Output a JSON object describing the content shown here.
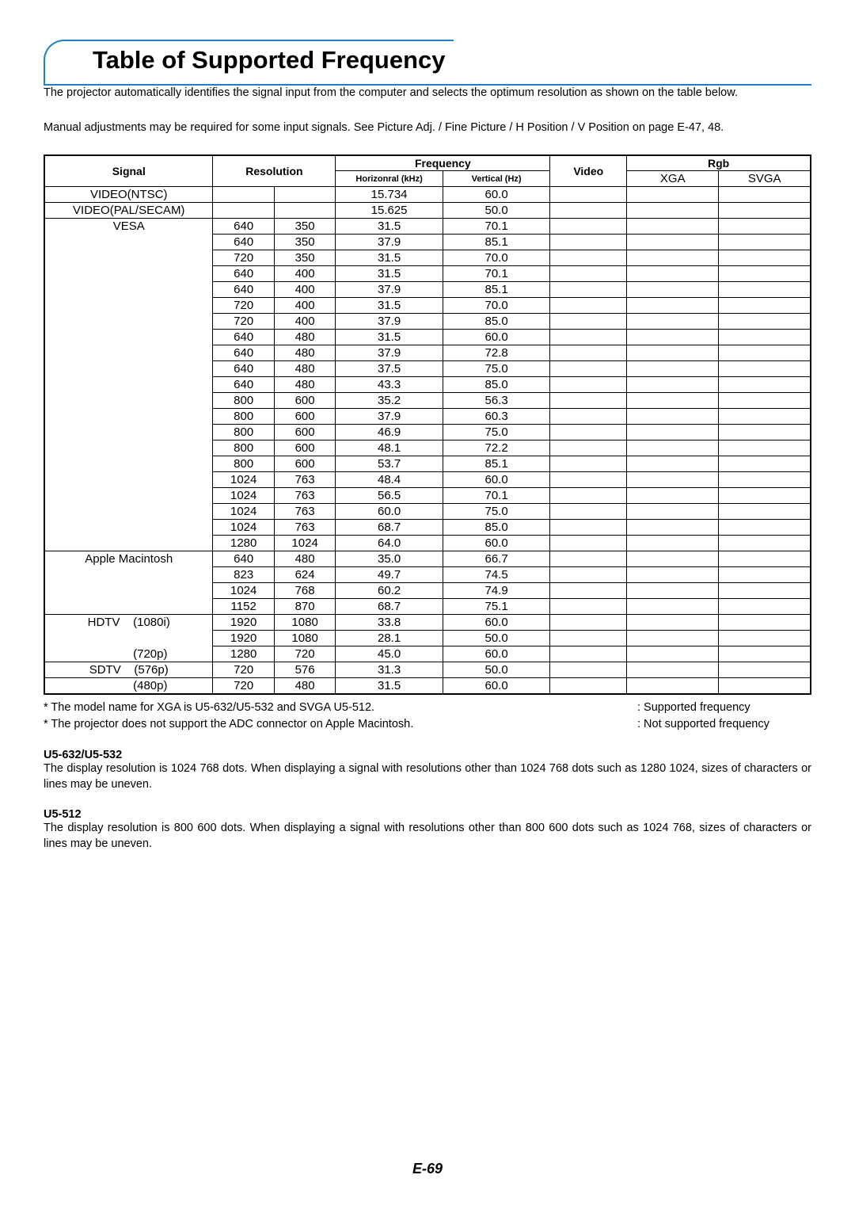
{
  "title": "Table of Supported Frequency",
  "intro1": "The projector automatically identifies the signal input from the computer and selects the optimum resolution as shown on the table below.",
  "intro2": "Manual adjustments may be required for some input signals. See  Picture Adj. / Fine Picture / H Position / V Position  on page E-47, 48.",
  "headers": {
    "signal": "Signal",
    "resolution": "Resolution",
    "frequency": "Frequency",
    "h_freq": "Horizonral (kHz)",
    "v_freq": "Vertical (Hz)",
    "video": "Video",
    "rgb": "Rgb",
    "xga": "XGA",
    "svga": "SVGA"
  },
  "rows": [
    {
      "signal": "VIDEO(NTSC)",
      "w": "",
      "h": "",
      "hf": "15.734",
      "vf": "60.0",
      "b": true
    },
    {
      "signal": "VIDEO(PAL/SECAM)",
      "w": "",
      "h": "",
      "hf": "15.625",
      "vf": "50.0",
      "b": true
    },
    {
      "signal": "VESA",
      "w": "640",
      "h": "350",
      "hf": "31.5",
      "vf": "70.1",
      "b": true
    },
    {
      "signal": "",
      "w": "640",
      "h": "350",
      "hf": "37.9",
      "vf": "85.1",
      "b": true
    },
    {
      "signal": "",
      "w": "720",
      "h": "350",
      "hf": "31.5",
      "vf": "70.0",
      "b": true
    },
    {
      "signal": "",
      "w": "640",
      "h": "400",
      "hf": "31.5",
      "vf": "70.1",
      "b": true
    },
    {
      "signal": "",
      "w": "640",
      "h": "400",
      "hf": "37.9",
      "vf": "85.1",
      "b": true
    },
    {
      "signal": "",
      "w": "720",
      "h": "400",
      "hf": "31.5",
      "vf": "70.0",
      "b": true
    },
    {
      "signal": "",
      "w": "720",
      "h": "400",
      "hf": "37.9",
      "vf": "85.0",
      "b": true
    },
    {
      "signal": "",
      "w": "640",
      "h": "480",
      "hf": "31.5",
      "vf": "60.0",
      "b": true
    },
    {
      "signal": "",
      "w": "640",
      "h": "480",
      "hf": "37.9",
      "vf": "72.8",
      "b": true
    },
    {
      "signal": "",
      "w": "640",
      "h": "480",
      "hf": "37.5",
      "vf": "75.0",
      "b": true
    },
    {
      "signal": "",
      "w": "640",
      "h": "480",
      "hf": "43.3",
      "vf": "85.0",
      "b": true
    },
    {
      "signal": "",
      "w": "800",
      "h": "600",
      "hf": "35.2",
      "vf": "56.3",
      "b": true
    },
    {
      "signal": "",
      "w": "800",
      "h": "600",
      "hf": "37.9",
      "vf": "60.3",
      "b": true
    },
    {
      "signal": "",
      "w": "800",
      "h": "600",
      "hf": "46.9",
      "vf": "75.0",
      "b": true
    },
    {
      "signal": "",
      "w": "800",
      "h": "600",
      "hf": "48.1",
      "vf": "72.2",
      "b": true
    },
    {
      "signal": "",
      "w": "800",
      "h": "600",
      "hf": "53.7",
      "vf": "85.1",
      "b": true
    },
    {
      "signal": "",
      "w": "1024",
      "h": "763",
      "hf": "48.4",
      "vf": "60.0",
      "b": true
    },
    {
      "signal": "",
      "w": "1024",
      "h": "763",
      "hf": "56.5",
      "vf": "70.1",
      "b": true
    },
    {
      "signal": "",
      "w": "1024",
      "h": "763",
      "hf": "60.0",
      "vf": "75.0",
      "b": true
    },
    {
      "signal": "",
      "w": "1024",
      "h": "763",
      "hf": "68.7",
      "vf": "85.0",
      "b": true
    },
    {
      "signal": "",
      "w": "1280",
      "h": "1024",
      "hf": "64.0",
      "vf": "60.0",
      "b": true
    },
    {
      "signal": "Apple Macintosh",
      "w": "640",
      "h": "480",
      "hf": "35.0",
      "vf": "66.7",
      "b": true
    },
    {
      "signal": "",
      "w": "823",
      "h": "624",
      "hf": "49.7",
      "vf": "74.5",
      "b": true
    },
    {
      "signal": "",
      "w": "1024",
      "h": "768",
      "hf": "60.2",
      "vf": "74.9",
      "b": true
    },
    {
      "signal": "",
      "w": "1152",
      "h": "870",
      "hf": "68.7",
      "vf": "75.1",
      "b": true
    },
    {
      "signal": "HDTV    (1080i)",
      "w": "1920",
      "h": "1080",
      "hf": "33.8",
      "vf": "60.0",
      "b": true
    },
    {
      "signal": "",
      "w": "1920",
      "h": "1080",
      "hf": "28.1",
      "vf": "50.0",
      "b": true
    },
    {
      "signal": "             (720p)",
      "w": "1280",
      "h": "720",
      "hf": "45.0",
      "vf": "60.0",
      "b": true
    },
    {
      "signal": "SDTV    (576p)",
      "w": "720",
      "h": "576",
      "hf": "31.3",
      "vf": "50.0",
      "b": true
    },
    {
      "signal": "             (480p)",
      "w": "720",
      "h": "480",
      "hf": "31.5",
      "vf": "60.0",
      "b": false
    }
  ],
  "footnote1": "*  The model name for XGA is U5-632/U5-532 and SVGA U5-512.",
  "footnote2": "*  The projector does not support the ADC connector on Apple Macintosh.",
  "legend1": ": Supported frequency",
  "legend2": ": Not supported frequency",
  "sec1_head": "U5-632/U5-532",
  "sec1_body": "The display resolution is 1024   768 dots. When displaying a signal with resolutions other than 1024   768 dots such as 1280   1024, sizes of characters or lines may be uneven.",
  "sec2_head": "U5-512",
  "sec2_body": "The display resolution is 800   600 dots. When displaying a signal with resolutions other than 800   600 dots such as 1024   768, sizes of characters or lines may be uneven.",
  "page_num": "E-69"
}
